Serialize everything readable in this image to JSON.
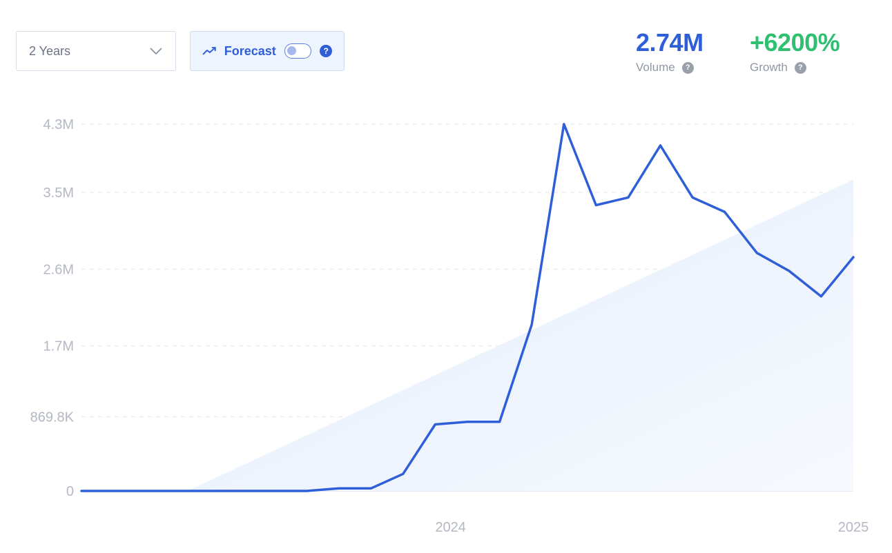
{
  "controls": {
    "range_label": "2 Years",
    "forecast_label": "Forecast",
    "forecast_enabled": false,
    "help_glyph": "?"
  },
  "stats": {
    "volume_value": "2.74M",
    "volume_label": "Volume",
    "growth_value": "+6200%",
    "growth_label": "Growth"
  },
  "colors": {
    "line": "#2f5fd8",
    "growth": "#2fbf71",
    "trend_fill": "#e8f0fc"
  },
  "chart_data": {
    "type": "line",
    "ylim": [
      0,
      4300000
    ],
    "y_ticks": [
      {
        "value": 0,
        "label": "0"
      },
      {
        "value": 869800,
        "label": "869.8K"
      },
      {
        "value": 1700000,
        "label": "1.7M"
      },
      {
        "value": 2600000,
        "label": "2.6M"
      },
      {
        "value": 3500000,
        "label": "3.5M"
      },
      {
        "value": 4300000,
        "label": "4.3M"
      }
    ],
    "x_ticks": [
      {
        "index": 11,
        "label": "2024"
      },
      {
        "index": 23,
        "label": "2025"
      }
    ],
    "grid": true,
    "series": [
      {
        "values": [
          0,
          0,
          0,
          0,
          0,
          0,
          0,
          0,
          30000,
          30000,
          200000,
          780000,
          810000,
          810000,
          1950000,
          4300000,
          3350000,
          3440000,
          4050000,
          3440000,
          3270000,
          2790000,
          2580000,
          2280000,
          2740000
        ]
      }
    ],
    "trend_area": {
      "start_index": 3.3,
      "start_value": 0,
      "end_index": 24,
      "end_value": 3650000
    }
  }
}
